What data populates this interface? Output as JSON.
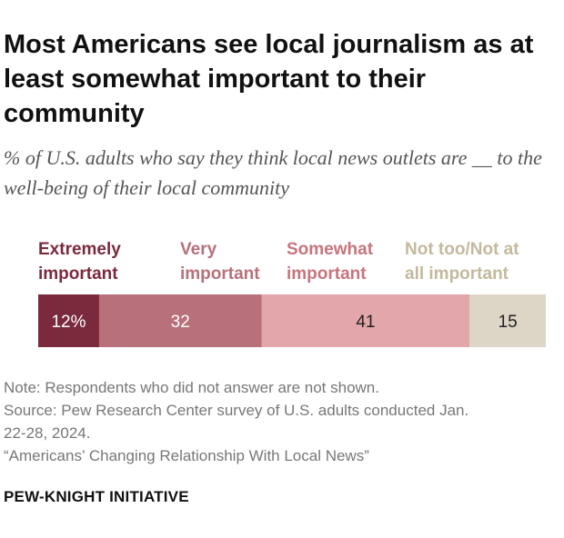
{
  "title": "Most Americans see local journalism as at least somewhat important to their community",
  "subtitle": "% of U.S. adults who say they think local news outlets are __ to the well-being of their local community",
  "chart_data": {
    "type": "bar",
    "orientation": "horizontal-stacked",
    "title": "Most Americans see local journalism as at least somewhat important to their community",
    "categories": [
      "Extremely important",
      "Very important",
      "Somewhat important",
      "Not too/Not at all important"
    ],
    "legend_lines": [
      [
        "Extremely",
        "important"
      ],
      [
        "Very",
        "important"
      ],
      [
        "Somewhat",
        "important"
      ],
      [
        "Not too/Not at",
        "all important"
      ]
    ],
    "values": [
      12,
      32,
      41,
      15
    ],
    "data_labels": [
      "12%",
      "32",
      "41",
      "15"
    ],
    "colors": [
      "#7b2a3e",
      "#b8707a",
      "#e3a6aa",
      "#ddd6c6"
    ],
    "legend_colors": [
      "#7b2a3e",
      "#b8707a",
      "#c7747d",
      "#c4b99e"
    ],
    "label_colors": [
      "#ffffff",
      "#ffffff",
      "#222222",
      "#222222"
    ],
    "xlim": [
      0,
      100
    ],
    "legend_position": "top",
    "grid": false
  },
  "notes": {
    "note": "Note: Respondents who did not answer are not shown.",
    "source_line1": "Source: Pew Research Center survey of U.S. adults conducted Jan.",
    "source_line2": "22-28, 2024.",
    "report": "“Americans’ Changing Relationship With Local News”"
  },
  "footer": "PEW-KNIGHT INITIATIVE"
}
